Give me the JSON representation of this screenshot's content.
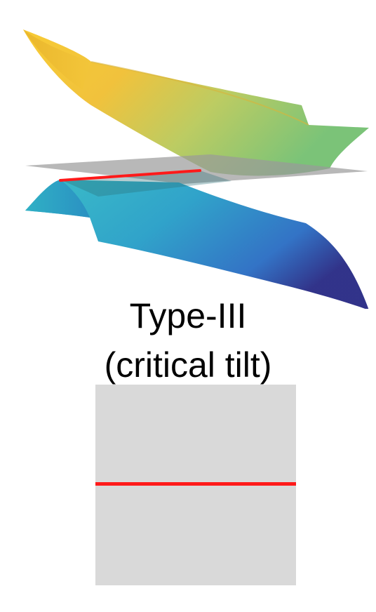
{
  "title": "Type-III",
  "subtitle": "(critical tilt)",
  "colors": {
    "cut_plane": "#9a9a9a",
    "nodal_line": "#ff1a1a",
    "panel": "#d9d9d9",
    "upper_band_start": "#f5c62e",
    "upper_band_end": "#7ec070",
    "lower_band_start": "#2fb3c8",
    "lower_band_end": "#2a2a8a"
  }
}
